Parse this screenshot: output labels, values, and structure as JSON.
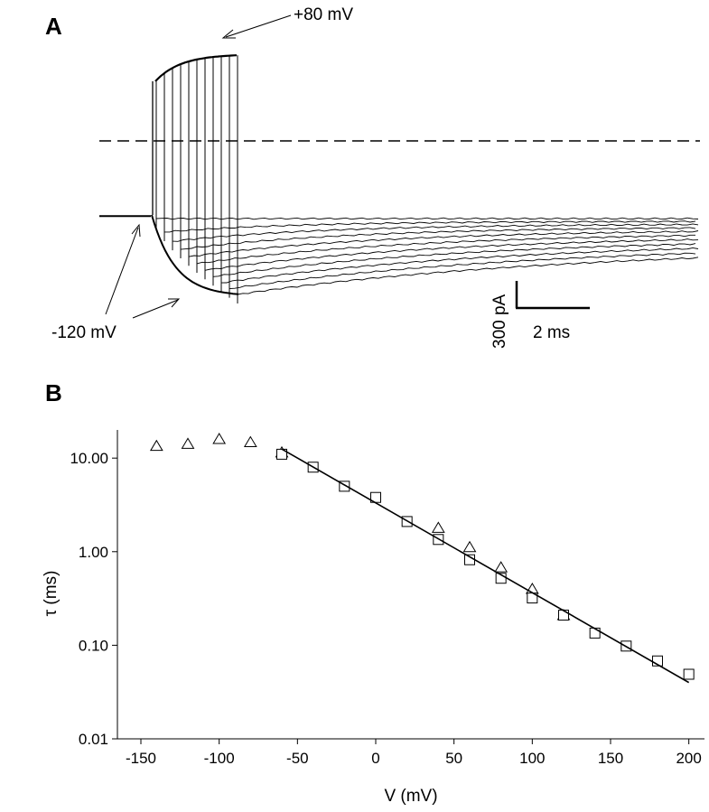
{
  "panel_a": {
    "label": "A",
    "annotation_top": "+80 mV",
    "annotation_bottom": "-120 mV",
    "scale_current": "300 pA",
    "scale_time": "2 ms",
    "n_traces": 11
  },
  "panel_b": {
    "label": "B"
  },
  "chart_data": {
    "type": "scatter",
    "xlabel": "V (mV)",
    "ylabel": "τ (ms)",
    "yscale": "log",
    "xlim": [
      -165,
      210
    ],
    "ylim": [
      0.01,
      20
    ],
    "x_ticks": [
      -150,
      -100,
      -50,
      0,
      50,
      100,
      150,
      200
    ],
    "y_ticks": [
      0.01,
      0.1,
      1.0,
      10.0
    ],
    "y_tick_labels": [
      "0.01",
      "0.10",
      "1.00",
      "10.00"
    ],
    "grid": false,
    "series": [
      {
        "marker": "triangle",
        "x": [
          -140,
          -120,
          -100,
          -80,
          -60,
          40,
          60,
          80,
          100,
          120
        ],
        "y": [
          13.5,
          14.2,
          16.0,
          14.8,
          11.5,
          1.8,
          1.12,
          0.68,
          0.4,
          0.21
        ]
      },
      {
        "marker": "square",
        "x": [
          -60,
          -40,
          -20,
          0,
          20,
          40,
          60,
          80,
          100,
          120,
          140,
          160,
          180,
          200
        ],
        "y": [
          11.0,
          8.0,
          5.0,
          3.8,
          2.1,
          1.35,
          0.82,
          0.52,
          0.32,
          0.21,
          0.135,
          0.098,
          0.068,
          0.049
        ]
      },
      {
        "marker": "line",
        "x": [
          -60,
          200
        ],
        "y": [
          12.5,
          0.04
        ]
      }
    ]
  }
}
